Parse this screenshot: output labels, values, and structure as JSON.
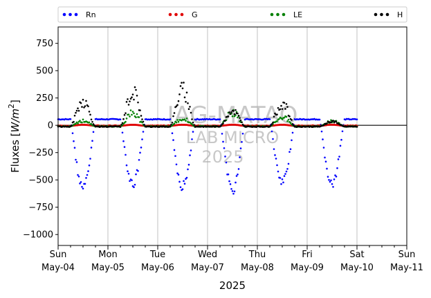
{
  "chart_data": {
    "type": "scatter",
    "title": "",
    "xlabel": "2025",
    "ylabel": "Fluxes [W/m²]",
    "ylabel_parts": {
      "prefix": "Fluxes [",
      "unit": "W/m",
      "exp": "2",
      "suffix": "]"
    },
    "xlim": [
      0,
      7
    ],
    "ylim": [
      -1100,
      900
    ],
    "yticks": [
      750,
      500,
      250,
      0,
      -250,
      -500,
      -750,
      -1000
    ],
    "ytick_labels": [
      "750",
      "500",
      "250",
      "0",
      "−250",
      "−500",
      "−750",
      "−1000"
    ],
    "xticks": [
      0,
      1,
      2,
      3,
      4,
      5,
      6,
      7
    ],
    "xtick_labels": [
      [
        "Sun",
        "May-04"
      ],
      [
        "Mon",
        "May-05"
      ],
      [
        "Tue",
        "May-06"
      ],
      [
        "Wed",
        "May-07"
      ],
      [
        "Thu",
        "May-08"
      ],
      [
        "Fri",
        "May-09"
      ],
      [
        "Sat",
        "May-10"
      ],
      [
        "Sun",
        "May-11"
      ]
    ],
    "grid": "vertical",
    "zero_line": true,
    "legend_position": "top",
    "watermark": [
      "IAG-MATAO",
      "LAB MICRO",
      "2025"
    ],
    "days": 6,
    "series": [
      {
        "name": "Rn",
        "color": "#0000ff",
        "night": 55,
        "day_min": [
          -575,
          -540,
          -555,
          -590,
          -530,
          -545
        ],
        "peak_hour": 12.5
      },
      {
        "name": "G",
        "color": "#e00000",
        "night": -5,
        "day_min": [
          5,
          5,
          5,
          5,
          5,
          5
        ],
        "peak_hour": 12.5
      },
      {
        "name": "LE",
        "color": "#008000",
        "night": -10,
        "day_max": [
          40,
          110,
          60,
          120,
          75,
          40
        ],
        "peak_hour": 13
      },
      {
        "name": "H",
        "color": "#000000",
        "night": -12,
        "day_max": [
          220,
          300,
          320,
          135,
          195,
          35
        ],
        "peak_hour": 12.5
      }
    ]
  }
}
